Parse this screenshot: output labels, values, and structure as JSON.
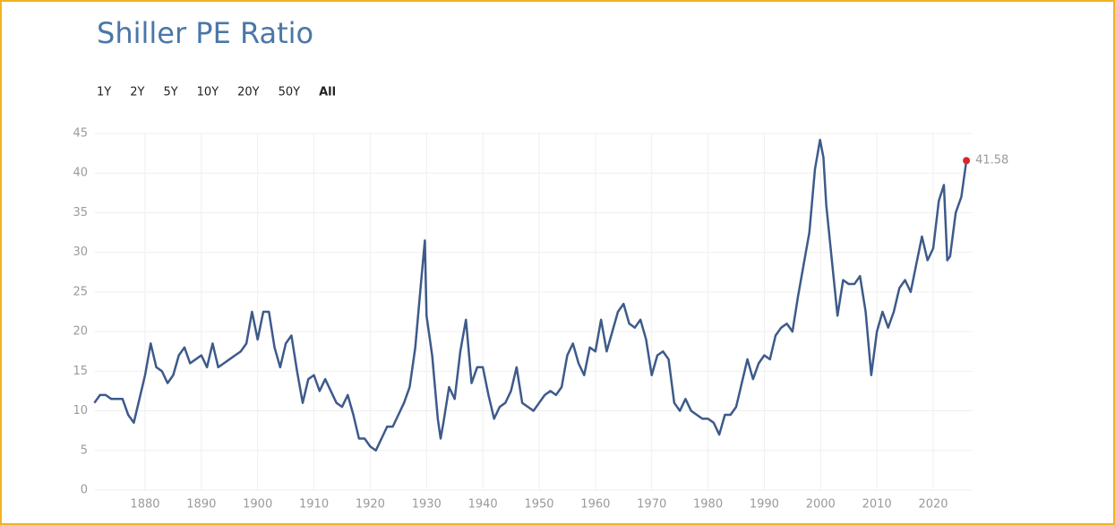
{
  "chart_data": {
    "type": "line",
    "title": "Shiller PE Ratio",
    "range_buttons": [
      "1Y",
      "2Y",
      "5Y",
      "10Y",
      "20Y",
      "50Y",
      "All"
    ],
    "selected_range": "All",
    "color": "#3d5a8a",
    "last_point_color": "#d62728",
    "grid": true,
    "x": [
      1871,
      1872,
      1873,
      1874,
      1875,
      1876,
      1877,
      1878,
      1879,
      1880,
      1881,
      1882,
      1883,
      1884,
      1885,
      1886,
      1887,
      1888,
      1889,
      1890,
      1891,
      1892,
      1893,
      1894,
      1895,
      1896,
      1897,
      1898,
      1899,
      1900,
      1901,
      1902,
      1903,
      1904,
      1905,
      1906,
      1907,
      1908,
      1909,
      1910,
      1911,
      1912,
      1913,
      1914,
      1915,
      1916,
      1917,
      1918,
      1919,
      1920,
      1921,
      1922,
      1923,
      1924,
      1925,
      1926,
      1927,
      1928,
      1929,
      1929.7,
      1930,
      1931,
      1932,
      1932.5,
      1933,
      1934,
      1935,
      1936,
      1937,
      1938,
      1939,
      1940,
      1941,
      1942,
      1943,
      1944,
      1945,
      1946,
      1947,
      1948,
      1949,
      1950,
      1951,
      1952,
      1953,
      1954,
      1955,
      1956,
      1957,
      1958,
      1959,
      1960,
      1961,
      1962,
      1963,
      1964,
      1965,
      1966,
      1967,
      1968,
      1969,
      1970,
      1971,
      1972,
      1973,
      1974,
      1975,
      1976,
      1977,
      1978,
      1979,
      1980,
      1981,
      1982,
      1983,
      1984,
      1985,
      1986,
      1987,
      1988,
      1989,
      1990,
      1991,
      1992,
      1993,
      1994,
      1995,
      1996,
      1997,
      1998,
      1999,
      1999.9,
      2000.5,
      2001,
      2002,
      2003,
      2004,
      2005,
      2006,
      2007,
      2008,
      2009,
      2010,
      2011,
      2012,
      2013,
      2014,
      2015,
      2016,
      2017,
      2018,
      2019,
      2020,
      2021,
      2021.9,
      2022.5,
      2023,
      2024,
      2025,
      2025.9
    ],
    "values": [
      11.0,
      12.0,
      12.0,
      11.5,
      11.5,
      11.5,
      9.5,
      8.5,
      11.5,
      14.5,
      18.5,
      15.5,
      15.0,
      13.5,
      14.5,
      17.0,
      18.0,
      16.0,
      16.5,
      17.0,
      15.5,
      18.5,
      15.5,
      16.0,
      16.5,
      17.0,
      17.5,
      18.5,
      22.5,
      19.0,
      22.5,
      22.5,
      18.0,
      15.5,
      18.5,
      19.5,
      15.0,
      11.0,
      14.0,
      14.5,
      12.5,
      14.0,
      12.5,
      11.0,
      10.5,
      12.0,
      9.5,
      6.5,
      6.5,
      5.5,
      5.0,
      6.5,
      8.0,
      8.0,
      9.5,
      11.0,
      13.0,
      18.0,
      26.0,
      31.5,
      22.0,
      17.0,
      9.0,
      6.5,
      8.5,
      13.0,
      11.5,
      17.5,
      21.5,
      13.5,
      15.5,
      15.5,
      12.0,
      9.0,
      10.5,
      11.0,
      12.5,
      15.5,
      11.0,
      10.5,
      10.0,
      11.0,
      12.0,
      12.5,
      12.0,
      13.0,
      17.0,
      18.5,
      16.0,
      14.5,
      18.0,
      17.5,
      21.5,
      17.5,
      20.0,
      22.5,
      23.5,
      21.0,
      20.5,
      21.5,
      19.0,
      14.5,
      17.0,
      17.5,
      16.5,
      11.0,
      10.0,
      11.5,
      10.0,
      9.5,
      9.0,
      9.0,
      8.5,
      7.0,
      9.5,
      9.5,
      10.5,
      13.5,
      16.5,
      14.0,
      16.0,
      17.0,
      16.5,
      19.5,
      20.5,
      21.0,
      20.0,
      24.5,
      28.5,
      32.5,
      40.5,
      44.2,
      42.0,
      36.0,
      29.0,
      22.0,
      26.5,
      26.0,
      26.0,
      27.0,
      22.5,
      14.5,
      20.0,
      22.5,
      20.5,
      22.5,
      25.5,
      26.5,
      25.0,
      28.5,
      32.0,
      29.0,
      30.5,
      36.5,
      38.5,
      29.0,
      29.5,
      35.0,
      37.0,
      41.58
    ],
    "xlim": [
      1871,
      2027
    ],
    "xticks": [
      1880,
      1890,
      1900,
      1910,
      1920,
      1930,
      1940,
      1950,
      1960,
      1970,
      1980,
      1990,
      2000,
      2010,
      2020
    ],
    "ylim": [
      0,
      45
    ],
    "yticks": [
      0,
      5,
      10,
      15,
      20,
      25,
      30,
      35,
      40,
      45
    ]
  }
}
